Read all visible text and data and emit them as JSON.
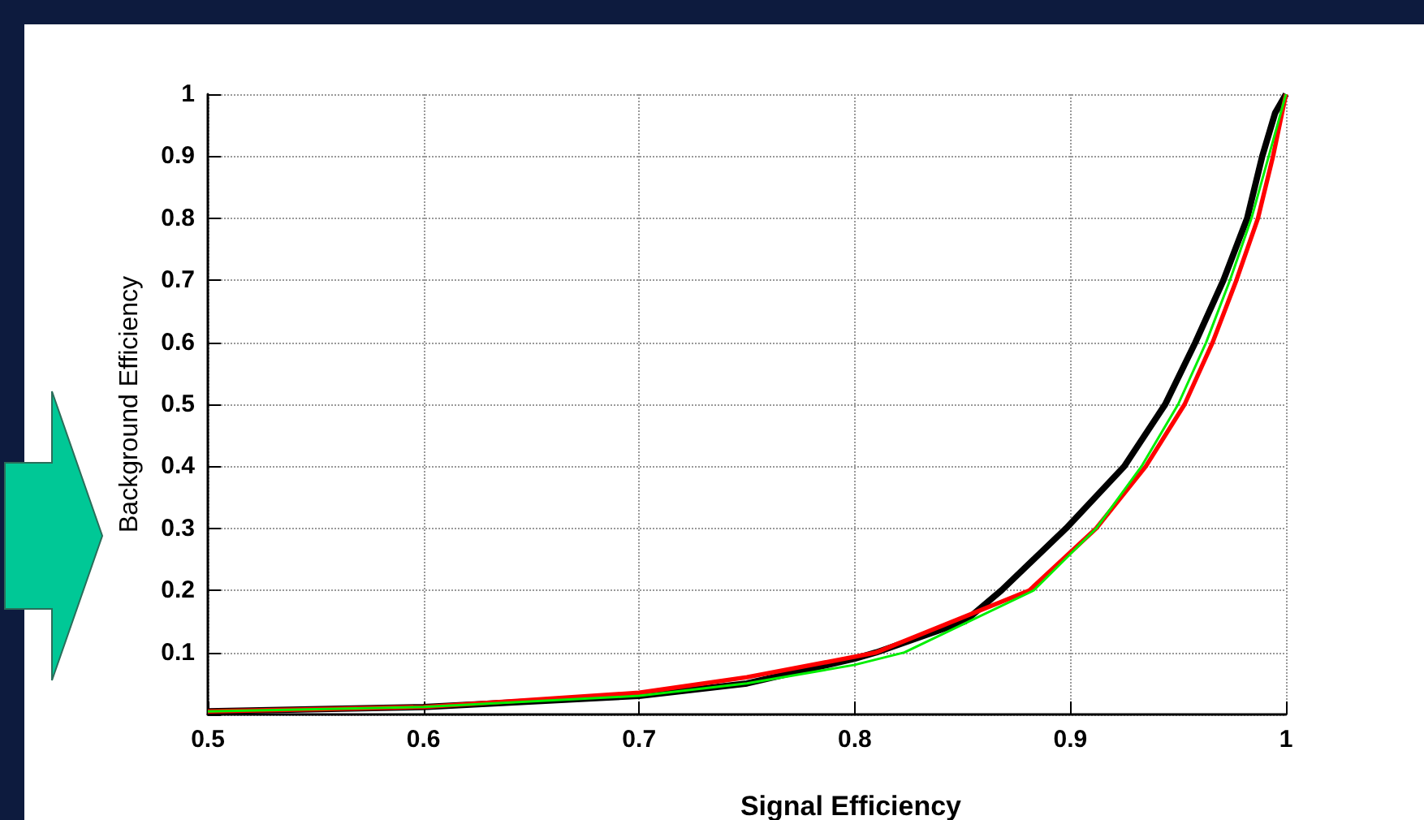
{
  "chart_data": {
    "type": "line",
    "xlabel": "Signal Efficiency",
    "ylabel": "Background Efficiency",
    "xlim": [
      0.5,
      1
    ],
    "ylim": [
      0,
      1
    ],
    "xticks": [
      0.5,
      0.6,
      0.7,
      0.8,
      0.9,
      1
    ],
    "yticks": [
      {
        "value": 0,
        "label": null
      },
      0.1,
      0.2,
      0.3,
      0.4,
      0.5,
      0.6,
      0.7,
      0.8,
      0.9,
      1
    ],
    "grid": true,
    "marker": "none",
    "line_style": "solid",
    "series": [
      {
        "color": "#000000",
        "x": [
          0.5,
          0.6,
          0.7,
          0.75,
          0.8,
          0.81,
          0.851,
          0.868,
          0.898,
          0.925,
          0.944,
          0.958,
          0.971,
          0.982,
          0.989,
          0.995,
          1
        ],
        "values": [
          0.005,
          0.012,
          0.03,
          0.05,
          0.09,
          0.1,
          0.15,
          0.2,
          0.3,
          0.4,
          0.5,
          0.6,
          0.7,
          0.8,
          0.9,
          0.97,
          1
        ]
      },
      {
        "color": "#ff0000",
        "x": [
          0.5,
          0.6,
          0.7,
          0.75,
          0.8,
          0.81,
          0.881,
          0.912,
          0.935,
          0.953,
          0.966,
          0.977,
          0.987,
          0.994,
          1
        ],
        "values": [
          0.005,
          0.012,
          0.035,
          0.06,
          0.093,
          0.1,
          0.2,
          0.3,
          0.4,
          0.5,
          0.6,
          0.7,
          0.8,
          0.9,
          1
        ]
      },
      {
        "color": "#00ee00",
        "x": [
          0.5,
          0.6,
          0.7,
          0.75,
          0.8,
          0.823,
          0.883,
          0.912,
          0.933,
          0.95,
          0.963,
          0.974,
          0.984,
          0.992,
          1
        ],
        "values": [
          0.005,
          0.012,
          0.03,
          0.05,
          0.08,
          0.1,
          0.2,
          0.3,
          0.4,
          0.5,
          0.6,
          0.7,
          0.8,
          0.9,
          1
        ]
      }
    ]
  }
}
